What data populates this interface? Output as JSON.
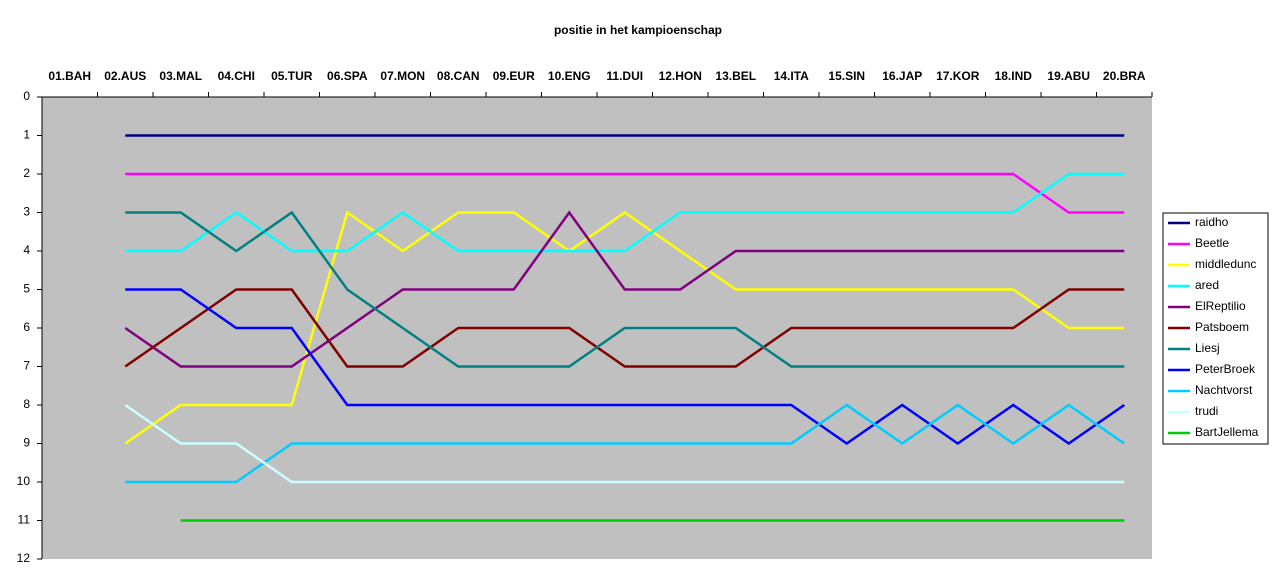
{
  "chart_data": {
    "type": "line",
    "title": "positie in het kampioenschap",
    "categories": [
      "01.BAH",
      "02.AUS",
      "03.MAL",
      "04.CHI",
      "05.TUR",
      "06.SPA",
      "07.MON",
      "08.CAN",
      "09.EUR",
      "10.ENG",
      "11.DUI",
      "12.HON",
      "13.BEL",
      "14.ITA",
      "15.SIN",
      "16.JAP",
      "17.KOR",
      "18.IND",
      "19.ABU",
      "20.BRA"
    ],
    "ylim": [
      0,
      12
    ],
    "yticks": [
      0,
      1,
      2,
      3,
      4,
      5,
      6,
      7,
      8,
      9,
      10,
      11,
      12
    ],
    "y_reversed": true,
    "x_axis_top": true,
    "plot_background": "#c0c0c0",
    "legend": "right",
    "series": [
      {
        "name": "raidho",
        "color": "#000080",
        "values": [
          null,
          1,
          1,
          1,
          1,
          1,
          1,
          1,
          1,
          1,
          1,
          1,
          1,
          1,
          1,
          1,
          1,
          1,
          1,
          1
        ]
      },
      {
        "name": "Beetle",
        "color": "#ff00ff",
        "values": [
          null,
          2,
          2,
          2,
          2,
          2,
          2,
          2,
          2,
          2,
          2,
          2,
          2,
          2,
          2,
          2,
          2,
          2,
          3,
          3
        ]
      },
      {
        "name": "middledunc",
        "color": "#ffff00",
        "values": [
          null,
          9,
          8,
          8,
          8,
          3,
          4,
          3,
          3,
          4,
          3,
          4,
          5,
          5,
          5,
          5,
          5,
          5,
          6,
          6
        ]
      },
      {
        "name": "ared",
        "color": "#00ffff",
        "values": [
          null,
          4,
          4,
          3,
          4,
          4,
          3,
          4,
          4,
          4,
          4,
          3,
          3,
          3,
          3,
          3,
          3,
          3,
          2,
          2
        ]
      },
      {
        "name": "ElReptilio",
        "color": "#800080",
        "values": [
          null,
          6,
          7,
          7,
          7,
          6,
          5,
          5,
          5,
          3,
          5,
          5,
          4,
          4,
          4,
          4,
          4,
          4,
          4,
          4
        ]
      },
      {
        "name": "Patsboem",
        "color": "#800000",
        "values": [
          null,
          7,
          6,
          5,
          5,
          7,
          7,
          6,
          6,
          6,
          7,
          7,
          7,
          6,
          6,
          6,
          6,
          6,
          5,
          5
        ]
      },
      {
        "name": "Liesj",
        "color": "#008080",
        "values": [
          null,
          3,
          3,
          4,
          3,
          5,
          6,
          7,
          7,
          7,
          6,
          6,
          6,
          7,
          7,
          7,
          7,
          7,
          7,
          7
        ]
      },
      {
        "name": "PeterBroek",
        "color": "#0000ff",
        "values": [
          null,
          5,
          5,
          6,
          6,
          8,
          8,
          8,
          8,
          8,
          8,
          8,
          8,
          8,
          9,
          8,
          9,
          8,
          9,
          8
        ]
      },
      {
        "name": "Nachtvorst",
        "color": "#00ccff",
        "values": [
          null,
          10,
          10,
          10,
          9,
          9,
          9,
          9,
          9,
          9,
          9,
          9,
          9,
          9,
          8,
          9,
          8,
          9,
          8,
          9
        ]
      },
      {
        "name": "trudi",
        "color": "#ccffff",
        "values": [
          null,
          8,
          9,
          9,
          10,
          10,
          10,
          10,
          10,
          10,
          10,
          10,
          10,
          10,
          10,
          10,
          10,
          10,
          10,
          10
        ]
      },
      {
        "name": "BartJellema",
        "color": "#00cc00",
        "values": [
          null,
          null,
          11,
          11,
          11,
          11,
          11,
          11,
          11,
          11,
          11,
          11,
          11,
          11,
          11,
          11,
          11,
          11,
          11,
          11
        ]
      }
    ]
  }
}
